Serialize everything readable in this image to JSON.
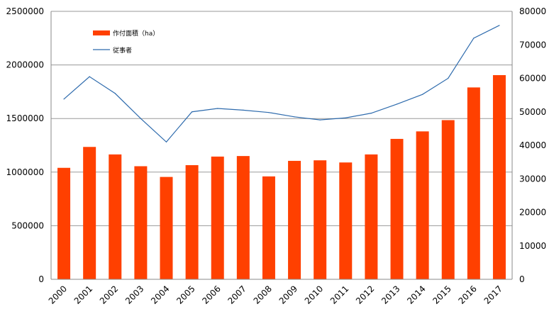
{
  "chart_data": {
    "type": "bar",
    "categories": [
      "2000",
      "2001",
      "2002",
      "2003",
      "2004",
      "2005",
      "2006",
      "2007",
      "2008",
      "2009",
      "2010",
      "2011",
      "2012",
      "2013",
      "2014",
      "2015",
      "2016",
      "2017"
    ],
    "series": [
      {
        "name": "作付面積（ha）",
        "type": "bar",
        "axis": "left",
        "color": "#ff4000",
        "values": [
          1040000,
          1235000,
          1165000,
          1055000,
          955000,
          1065000,
          1145000,
          1150000,
          960000,
          1105000,
          1110000,
          1090000,
          1165000,
          1310000,
          1380000,
          1485000,
          1790000,
          1905000
        ]
      },
      {
        "name": "従事者",
        "type": "line",
        "axis": "right",
        "color": "#2e6bad",
        "values": [
          53800,
          60500,
          55500,
          48000,
          41000,
          50000,
          51000,
          50500,
          49800,
          48500,
          47600,
          48200,
          49600,
          52300,
          55200,
          60000,
          72000,
          75800
        ]
      }
    ],
    "left_axis": {
      "ylim": [
        0,
        2500000
      ],
      "ticks": [
        "0",
        "500000",
        "1000000",
        "1500000",
        "2000000",
        "2500000"
      ]
    },
    "right_axis": {
      "ylim": [
        0,
        80000
      ],
      "ticks": [
        "0",
        "10000",
        "20000",
        "30000",
        "40000",
        "50000",
        "60000",
        "70000",
        "80000"
      ]
    },
    "grid": "horizontal",
    "legend": {
      "position": "top-left"
    }
  }
}
